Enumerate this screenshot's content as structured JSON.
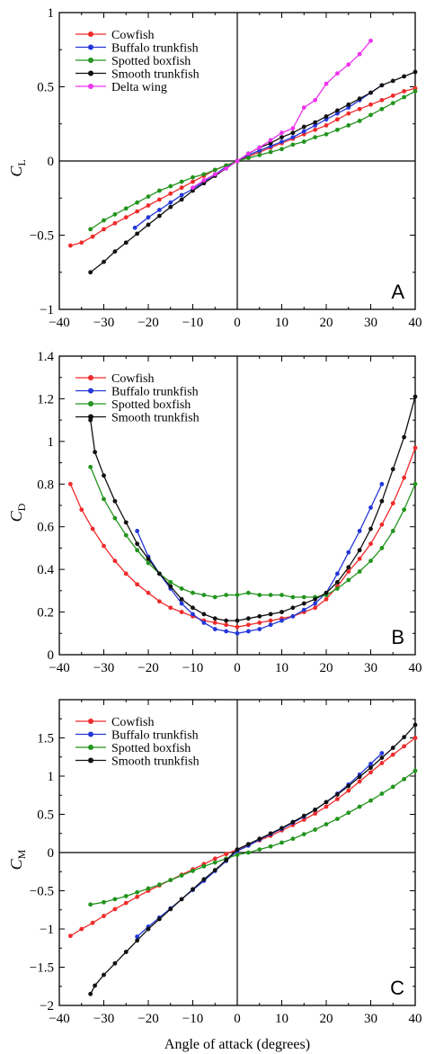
{
  "colors": {
    "Cowfish": "#ef2b2b",
    "Buffalo trunkfish": "#2437d8",
    "Spotted boxfish": "#23941e",
    "Smooth trunkfish": "#111111",
    "Delta wing": "#ee33ee"
  },
  "xlabel": "Angle of attack (degrees)",
  "chart_data": [
    {
      "type": "line",
      "panel": "A",
      "ylabel": "C",
      "ylabel_sub": "L",
      "xlim": [
        -40,
        40
      ],
      "ylim": [
        -1,
        1
      ],
      "xticks": [
        -40,
        -30,
        -20,
        -10,
        0,
        10,
        20,
        30,
        40
      ],
      "xtick_labels": [
        "−40",
        "−30",
        "−20",
        "−10",
        "0",
        "10",
        "20",
        "30",
        "40"
      ],
      "yticks": [
        -1,
        -0.5,
        0,
        0.5,
        1
      ],
      "ytick_labels": [
        "−1",
        "−0.5",
        "0",
        "0.5",
        "1"
      ],
      "legend_position": "top-left",
      "grid": false,
      "series": [
        {
          "name": "Cowfish",
          "x": [
            -37.5,
            -35,
            -32.5,
            -30,
            -27.5,
            -25,
            -22.5,
            -20,
            -17.5,
            -15,
            -12.5,
            -10,
            -7.5,
            -5,
            -2.5,
            0,
            2.5,
            5,
            7.5,
            10,
            12.5,
            15,
            17.5,
            20,
            22.5,
            25,
            27.5,
            30,
            32.5,
            35,
            37.5,
            40
          ],
          "y": [
            -0.57,
            -0.55,
            -0.51,
            -0.46,
            -0.42,
            -0.38,
            -0.34,
            -0.3,
            -0.26,
            -0.22,
            -0.18,
            -0.14,
            -0.1,
            -0.06,
            -0.03,
            0.0,
            0.03,
            0.06,
            0.09,
            0.12,
            0.15,
            0.18,
            0.21,
            0.24,
            0.28,
            0.32,
            0.35,
            0.38,
            0.41,
            0.44,
            0.47,
            0.49
          ]
        },
        {
          "name": "Buffalo trunkfish",
          "x": [
            -23,
            -20,
            -17.5,
            -15,
            -12.5,
            -10,
            -7.5,
            -5,
            -2.5,
            0,
            2.5,
            5,
            7.5,
            10,
            12.5,
            15,
            17.5,
            20,
            22.5,
            25,
            27.5,
            30,
            32.5
          ],
          "y": [
            -0.45,
            -0.38,
            -0.33,
            -0.28,
            -0.23,
            -0.19,
            -0.14,
            -0.09,
            -0.04,
            0.0,
            0.04,
            0.07,
            0.1,
            0.13,
            0.16,
            0.2,
            0.24,
            0.28,
            0.32,
            0.36,
            0.41,
            0.46,
            0.51
          ]
        },
        {
          "name": "Spotted boxfish",
          "x": [
            -33,
            -30,
            -27.5,
            -25,
            -22.5,
            -20,
            -17.5,
            -15,
            -12.5,
            -10,
            -7.5,
            -5,
            -2.5,
            0,
            2.5,
            5,
            7.5,
            10,
            12.5,
            15,
            17.5,
            20,
            22.5,
            25,
            27.5,
            30,
            32.5,
            35,
            37.5,
            40
          ],
          "y": [
            -0.46,
            -0.4,
            -0.36,
            -0.32,
            -0.28,
            -0.24,
            -0.2,
            -0.17,
            -0.14,
            -0.11,
            -0.09,
            -0.06,
            -0.03,
            0.0,
            0.02,
            0.04,
            0.06,
            0.08,
            0.11,
            0.13,
            0.16,
            0.18,
            0.21,
            0.24,
            0.27,
            0.31,
            0.35,
            0.39,
            0.43,
            0.47
          ]
        },
        {
          "name": "Smooth trunkfish",
          "x": [
            -33,
            -30,
            -27.5,
            -25,
            -22.5,
            -20,
            -17.5,
            -15,
            -12.5,
            -10,
            -7.5,
            -5,
            -2.5,
            0,
            2.5,
            5,
            7.5,
            10,
            12.5,
            15,
            17.5,
            20,
            22.5,
            25,
            27.5,
            30,
            32.5,
            35,
            37.5,
            40
          ],
          "y": [
            -0.75,
            -0.68,
            -0.61,
            -0.55,
            -0.49,
            -0.43,
            -0.37,
            -0.31,
            -0.26,
            -0.2,
            -0.15,
            -0.1,
            -0.05,
            0.0,
            0.05,
            0.09,
            0.12,
            0.16,
            0.19,
            0.23,
            0.26,
            0.3,
            0.34,
            0.38,
            0.42,
            0.46,
            0.51,
            0.54,
            0.57,
            0.6
          ]
        },
        {
          "name": "Delta wing",
          "x": [
            -10,
            -7.5,
            -5,
            -2.5,
            0,
            2.5,
            5,
            7.5,
            10,
            12.5,
            15,
            17.5,
            20,
            22.5,
            25,
            27.5,
            30
          ],
          "y": [
            -0.18,
            -0.13,
            -0.09,
            -0.05,
            0.0,
            0.05,
            0.09,
            0.14,
            0.19,
            0.22,
            0.36,
            0.41,
            0.52,
            0.59,
            0.65,
            0.72,
            0.81
          ]
        }
      ]
    },
    {
      "type": "line",
      "panel": "B",
      "ylabel": "C",
      "ylabel_sub": "D",
      "xlim": [
        -40,
        40
      ],
      "ylim": [
        0,
        1.4
      ],
      "xticks": [
        -40,
        -30,
        -20,
        -10,
        0,
        10,
        20,
        30,
        40
      ],
      "xtick_labels": [
        "−40",
        "−30",
        "−20",
        "−10",
        "0",
        "10",
        "20",
        "30",
        "40"
      ],
      "yticks": [
        0,
        0.2,
        0.4,
        0.6,
        0.8,
        1,
        1.2,
        1.4
      ],
      "ytick_labels": [
        "0",
        "0.2",
        "0.4",
        "0.6",
        "0.8",
        "1",
        "1.2",
        "1.4"
      ],
      "legend_position": "top-left",
      "grid": false,
      "series": [
        {
          "name": "Cowfish",
          "x": [
            -37.5,
            -35,
            -32.5,
            -30,
            -27.5,
            -25,
            -22.5,
            -20,
            -17.5,
            -15,
            -12.5,
            -10,
            -7.5,
            -5,
            -2.5,
            0,
            2.5,
            5,
            7.5,
            10,
            12.5,
            15,
            17.5,
            20,
            22.5,
            25,
            27.5,
            30,
            32.5,
            35,
            37.5,
            40
          ],
          "y": [
            0.8,
            0.68,
            0.59,
            0.51,
            0.44,
            0.38,
            0.33,
            0.29,
            0.25,
            0.22,
            0.2,
            0.18,
            0.16,
            0.15,
            0.14,
            0.13,
            0.14,
            0.15,
            0.16,
            0.17,
            0.18,
            0.2,
            0.22,
            0.26,
            0.32,
            0.39,
            0.45,
            0.52,
            0.61,
            0.71,
            0.83,
            0.97
          ]
        },
        {
          "name": "Buffalo trunkfish",
          "x": [
            -22.5,
            -20,
            -17.5,
            -15,
            -12.5,
            -10,
            -7.5,
            -5,
            -2.5,
            0,
            2.5,
            5,
            7.5,
            10,
            12.5,
            15,
            17.5,
            20,
            22.5,
            25,
            27.5,
            30,
            32.5
          ],
          "y": [
            0.58,
            0.46,
            0.38,
            0.31,
            0.24,
            0.19,
            0.15,
            0.12,
            0.11,
            0.1,
            0.11,
            0.12,
            0.14,
            0.16,
            0.18,
            0.21,
            0.24,
            0.29,
            0.38,
            0.48,
            0.58,
            0.69,
            0.8
          ]
        },
        {
          "name": "Spotted boxfish",
          "x": [
            -33,
            -30,
            -27.5,
            -25,
            -22.5,
            -20,
            -17.5,
            -15,
            -12.5,
            -10,
            -7.5,
            -5,
            -2.5,
            0,
            2.5,
            5,
            7.5,
            10,
            12.5,
            15,
            17.5,
            20,
            22.5,
            25,
            27.5,
            30,
            32.5,
            35,
            37.5,
            40
          ],
          "y": [
            0.88,
            0.73,
            0.64,
            0.56,
            0.49,
            0.43,
            0.38,
            0.34,
            0.31,
            0.29,
            0.28,
            0.27,
            0.28,
            0.28,
            0.29,
            0.28,
            0.28,
            0.28,
            0.27,
            0.27,
            0.27,
            0.28,
            0.31,
            0.35,
            0.39,
            0.44,
            0.5,
            0.58,
            0.68,
            0.8
          ]
        },
        {
          "name": "Smooth trunkfish",
          "x": [
            -33,
            -32,
            -30,
            -27.5,
            -25,
            -22.5,
            -20,
            -17.5,
            -15,
            -12.5,
            -10,
            -7.5,
            -5,
            -2.5,
            0,
            2.5,
            5,
            7.5,
            10,
            12.5,
            15,
            17.5,
            20,
            22.5,
            25,
            27.5,
            30,
            32.5,
            35,
            37.5,
            40
          ],
          "y": [
            1.1,
            0.95,
            0.84,
            0.72,
            0.62,
            0.52,
            0.45,
            0.38,
            0.32,
            0.26,
            0.22,
            0.19,
            0.17,
            0.16,
            0.16,
            0.17,
            0.18,
            0.19,
            0.2,
            0.22,
            0.24,
            0.26,
            0.29,
            0.34,
            0.41,
            0.49,
            0.59,
            0.72,
            0.87,
            1.02,
            1.21
          ]
        }
      ]
    },
    {
      "type": "line",
      "panel": "C",
      "ylabel": "C",
      "ylabel_sub": "M",
      "xlim": [
        -40,
        40
      ],
      "ylim": [
        -2,
        2
      ],
      "xticks": [
        -40,
        -30,
        -20,
        -10,
        0,
        10,
        20,
        30,
        40
      ],
      "xtick_labels": [
        "−40",
        "−30",
        "−20",
        "−10",
        "0",
        "10",
        "20",
        "30",
        "40"
      ],
      "yticks": [
        -2,
        -1.5,
        -1,
        -0.5,
        0,
        0.5,
        1,
        1.5
      ],
      "ytick_labels": [
        "−2",
        "−1.5",
        "−1",
        "−0.5",
        "0",
        "0.5",
        "1",
        "1.5"
      ],
      "legend_position": "top-left",
      "grid": false,
      "series": [
        {
          "name": "Cowfish",
          "x": [
            -37.5,
            -35,
            -32.5,
            -30,
            -27.5,
            -25,
            -22.5,
            -20,
            -17.5,
            -15,
            -12.5,
            -10,
            -7.5,
            -5,
            -2.5,
            0,
            2.5,
            5,
            7.5,
            10,
            12.5,
            15,
            17.5,
            20,
            22.5,
            25,
            27.5,
            30,
            32.5,
            35,
            37.5,
            40
          ],
          "y": [
            -1.09,
            -1.0,
            -0.92,
            -0.83,
            -0.74,
            -0.66,
            -0.58,
            -0.5,
            -0.43,
            -0.36,
            -0.29,
            -0.22,
            -0.15,
            -0.08,
            -0.02,
            0.04,
            0.1,
            0.16,
            0.22,
            0.29,
            0.36,
            0.43,
            0.51,
            0.6,
            0.7,
            0.81,
            0.93,
            1.05,
            1.17,
            1.28,
            1.39,
            1.5
          ]
        },
        {
          "name": "Buffalo trunkfish",
          "x": [
            -22.5,
            -20,
            -17.5,
            -15,
            -12.5,
            -10,
            -7.5,
            -5,
            -2.5,
            0,
            2.5,
            5,
            7.5,
            10,
            12.5,
            15,
            17.5,
            20,
            22.5,
            25,
            27.5,
            30,
            32.5
          ],
          "y": [
            -1.1,
            -0.97,
            -0.85,
            -0.73,
            -0.61,
            -0.49,
            -0.37,
            -0.24,
            -0.11,
            0.02,
            0.09,
            0.17,
            0.24,
            0.31,
            0.39,
            0.47,
            0.56,
            0.66,
            0.77,
            0.89,
            1.02,
            1.16,
            1.3
          ]
        },
        {
          "name": "Spotted boxfish",
          "x": [
            -33,
            -30,
            -27.5,
            -25,
            -22.5,
            -20,
            -17.5,
            -15,
            -12.5,
            -10,
            -7.5,
            -5,
            -2.5,
            0,
            2.5,
            5,
            7.5,
            10,
            12.5,
            15,
            17.5,
            20,
            22.5,
            25,
            27.5,
            30,
            32.5,
            35,
            37.5,
            40
          ],
          "y": [
            -0.68,
            -0.65,
            -0.61,
            -0.57,
            -0.52,
            -0.47,
            -0.42,
            -0.36,
            -0.3,
            -0.24,
            -0.18,
            -0.13,
            -0.08,
            -0.03,
            0.0,
            0.04,
            0.08,
            0.13,
            0.18,
            0.24,
            0.3,
            0.37,
            0.44,
            0.52,
            0.6,
            0.68,
            0.77,
            0.86,
            0.96,
            1.07
          ]
        },
        {
          "name": "Smooth trunkfish",
          "x": [
            -33,
            -32,
            -30,
            -27.5,
            -25,
            -22.5,
            -20,
            -17.5,
            -15,
            -12.5,
            -10,
            -7.5,
            -5,
            -2.5,
            0,
            2.5,
            5,
            7.5,
            10,
            12.5,
            15,
            17.5,
            20,
            22.5,
            25,
            27.5,
            30,
            32.5,
            35,
            37.5,
            40
          ],
          "y": [
            -1.85,
            -1.74,
            -1.6,
            -1.45,
            -1.3,
            -1.15,
            -1.0,
            -0.87,
            -0.74,
            -0.61,
            -0.48,
            -0.35,
            -0.23,
            -0.1,
            0.04,
            0.11,
            0.18,
            0.25,
            0.32,
            0.4,
            0.48,
            0.56,
            0.66,
            0.76,
            0.87,
            0.99,
            1.11,
            1.24,
            1.37,
            1.51,
            1.67
          ]
        }
      ]
    }
  ]
}
